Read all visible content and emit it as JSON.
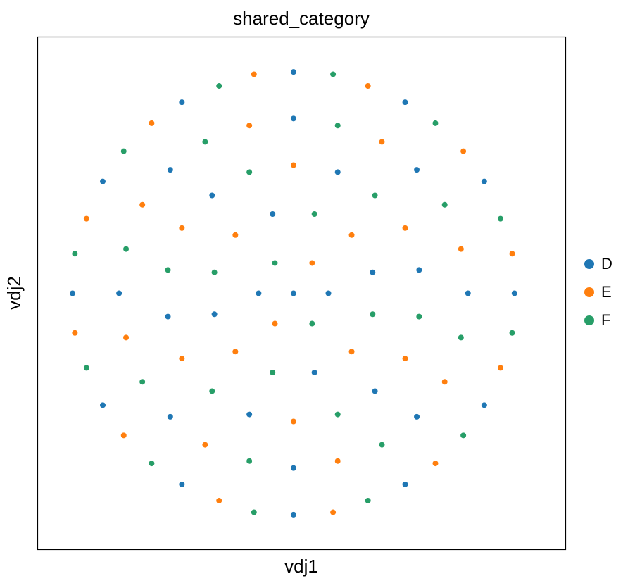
{
  "chart_data": {
    "type": "scatter",
    "title": "shared_category",
    "x_label": "vdj1",
    "y_label": "vdj2",
    "xlim": [
      -1.1,
      1.17
    ],
    "ylim": [
      -1.1,
      1.1
    ],
    "grid": false,
    "legend": "right",
    "series": [
      {
        "name": "D",
        "color": "#1f77b4",
        "x": [
          0.95,
          0.82,
          0.48,
          0,
          -0.48,
          -0.82,
          -0.95,
          -0.82,
          -0.48,
          0,
          0.48,
          0.82,
          0.75,
          0.53,
          0,
          -0.53,
          -0.75,
          -0.53,
          0,
          0.53,
          0.54,
          0.19,
          -0.35,
          -0.54,
          -0.19,
          0.35,
          0.34,
          -0.09,
          -0.34,
          0.09,
          0.15,
          -0.15,
          0
        ],
        "values": [
          0,
          0.48,
          0.82,
          0.95,
          0.82,
          0.48,
          0,
          -0.48,
          -0.82,
          -0.95,
          -0.82,
          -0.48,
          0,
          0.53,
          0.75,
          0.53,
          0,
          -0.53,
          -0.75,
          -0.53,
          0.1,
          0.52,
          0.42,
          -0.1,
          -0.52,
          -0.42,
          0.09,
          0.34,
          -0.09,
          -0.34,
          0,
          0,
          0
        ]
      },
      {
        "name": "E",
        "color": "#ff7f0e",
        "x": [
          0.94,
          0.73,
          0.32,
          -0.17,
          -0.61,
          -0.89,
          -0.94,
          -0.73,
          -0.32,
          0.17,
          0.61,
          0.89,
          0.72,
          0.38,
          -0.19,
          -0.65,
          -0.72,
          -0.38,
          0.19,
          0.65,
          0.48,
          0,
          -0.48,
          -0.48,
          0,
          0.48,
          0.25,
          -0.25,
          -0.25,
          0.25,
          0.08,
          -0.08
        ],
        "values": [
          0.17,
          0.61,
          0.89,
          0.94,
          0.73,
          0.32,
          -0.17,
          -0.61,
          -0.89,
          -0.94,
          -0.73,
          -0.32,
          0.19,
          0.65,
          0.72,
          0.38,
          -0.19,
          -0.65,
          -0.72,
          -0.38,
          0.28,
          0.55,
          0.28,
          -0.28,
          -0.55,
          -0.28,
          0.25,
          0.25,
          -0.25,
          -0.25,
          0.13,
          -0.13
        ]
      },
      {
        "name": "F",
        "color": "#279e68",
        "x": [
          0.89,
          0.61,
          0.17,
          -0.32,
          -0.73,
          -0.94,
          -0.89,
          -0.61,
          -0.17,
          0.32,
          0.73,
          0.94,
          0.65,
          0.19,
          -0.38,
          -0.72,
          -0.65,
          -0.19,
          0.38,
          0.72,
          0.35,
          -0.19,
          -0.54,
          -0.35,
          0.19,
          0.54,
          0.09,
          -0.34,
          -0.09,
          0.34,
          -0.08,
          0.08
        ],
        "values": [
          0.32,
          0.73,
          0.94,
          0.89,
          0.61,
          0.17,
          -0.32,
          -0.73,
          -0.94,
          -0.89,
          -0.61,
          -0.17,
          0.38,
          0.72,
          0.65,
          0.19,
          -0.38,
          -0.72,
          -0.65,
          -0.19,
          0.42,
          0.52,
          0.1,
          -0.42,
          -0.52,
          -0.1,
          0.34,
          0.09,
          -0.34,
          -0.09,
          0.13,
          -0.13
        ]
      }
    ]
  }
}
